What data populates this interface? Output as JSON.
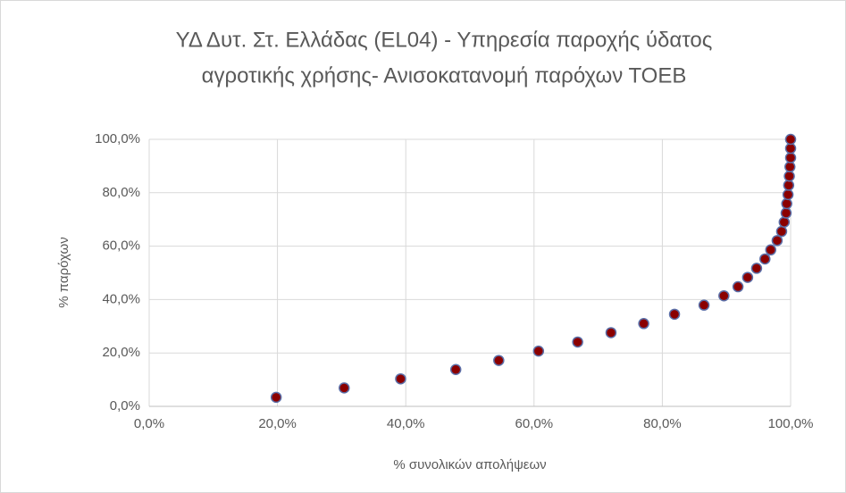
{
  "chart_data": {
    "type": "scatter",
    "title": [
      "ΥΔ Δυτ. Στ. Ελλάδας (EL04) - Υπηρεσία παροχής ύδατος",
      "αγροτικής χρήσης-  Ανισοκατανομή παρόχων ΤΟΕΒ"
    ],
    "x_label": "% συνολικών απολήψεων",
    "y_label": "% παρόχων",
    "series": [
      {
        "name": "ΤΟΕΒ",
        "color": "#8b0000",
        "edge_color": "#5b6fa8",
        "x": [
          19.8,
          30.4,
          39.2,
          47.8,
          54.5,
          60.7,
          66.8,
          72.0,
          77.1,
          81.9,
          86.5,
          89.6,
          91.8,
          93.3,
          94.7,
          96.0,
          96.9,
          97.9,
          98.6,
          99.0,
          99.3,
          99.4,
          99.6,
          99.7,
          99.8,
          99.9,
          100,
          100,
          100
        ],
        "values": [
          3.4,
          6.9,
          10.3,
          13.8,
          17.2,
          20.7,
          24.1,
          27.6,
          31.0,
          34.5,
          37.9,
          41.4,
          44.8,
          48.3,
          51.7,
          55.2,
          58.6,
          62.1,
          65.5,
          69.0,
          72.4,
          75.9,
          79.3,
          82.8,
          86.2,
          89.7,
          93.1,
          96.6,
          100
        ]
      }
    ],
    "xlim": [
      0,
      100
    ],
    "ylim": [
      0,
      100
    ],
    "xticks": [
      {
        "value": 0,
        "label": "0,0%"
      },
      {
        "value": 20,
        "label": "20,0%"
      },
      {
        "value": 40,
        "label": "40,0%"
      },
      {
        "value": 60,
        "label": "60,0%"
      },
      {
        "value": 80,
        "label": "80,0%"
      },
      {
        "value": 100,
        "label": "100,0%"
      }
    ],
    "yticks": [
      {
        "value": 0,
        "label": "0,0%"
      },
      {
        "value": 20,
        "label": "20,0%"
      },
      {
        "value": 40,
        "label": "40,0%"
      },
      {
        "value": 60,
        "label": "60,0%"
      },
      {
        "value": 80,
        "label": "80,0%"
      },
      {
        "value": 100,
        "label": "100,0%"
      }
    ],
    "grid": true
  }
}
